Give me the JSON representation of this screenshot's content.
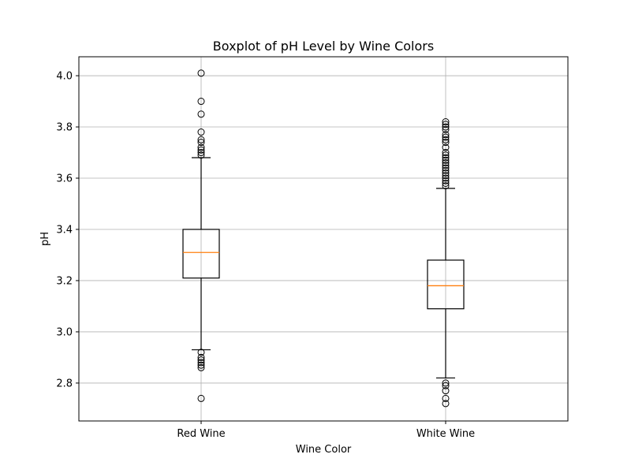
{
  "chart_data": {
    "type": "boxplot",
    "title": "Boxplot of pH Level by Wine Colors",
    "xlabel": "Wine Color",
    "ylabel": "pH",
    "ylim": [
      2.652,
      4.074
    ],
    "yticks": [
      "2.8",
      "3.0",
      "3.2",
      "3.4",
      "3.6",
      "3.8",
      "4.0"
    ],
    "grid": true,
    "categories": [
      "Red Wine",
      "White Wine"
    ],
    "boxes": [
      {
        "name": "Red Wine",
        "whisker_low": 2.93,
        "q1": 3.21,
        "median": 3.31,
        "q3": 3.4,
        "whisker_high": 3.68,
        "outliers": [
          2.74,
          2.86,
          2.87,
          2.88,
          2.89,
          2.9,
          2.92,
          3.69,
          3.7,
          3.71,
          3.72,
          3.74,
          3.75,
          3.78,
          3.85,
          3.9,
          4.01
        ]
      },
      {
        "name": "White Wine",
        "whisker_low": 2.82,
        "q1": 3.09,
        "median": 3.18,
        "q3": 3.28,
        "whisker_high": 3.56,
        "outliers": [
          2.72,
          2.74,
          2.77,
          2.79,
          2.8,
          3.57,
          3.58,
          3.59,
          3.6,
          3.61,
          3.62,
          3.63,
          3.64,
          3.65,
          3.66,
          3.67,
          3.68,
          3.69,
          3.7,
          3.72,
          3.74,
          3.75,
          3.76,
          3.77,
          3.79,
          3.8,
          3.81,
          3.82
        ]
      }
    ],
    "colors": {
      "median": "#ff7f0e",
      "box": "#000000",
      "grid": "#b0b0b0"
    }
  }
}
